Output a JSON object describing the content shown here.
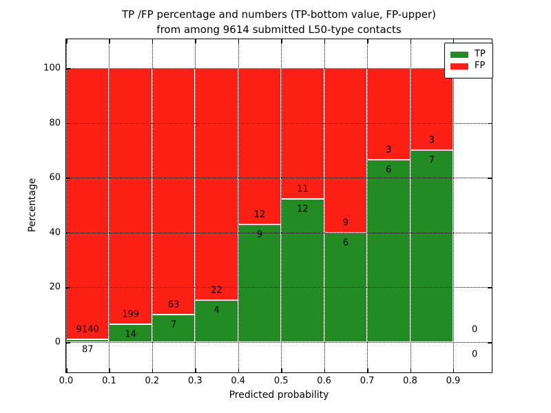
{
  "chart_data": {
    "type": "bar",
    "stacked": true,
    "title": "TP /FP percentage and numbers (TP-bottom value, FP-upper) from among 9614 submitted L50-type contacts",
    "title_lines": [
      "TP /FP percentage and numbers (TP-bottom value, FP-upper)",
      "from among 9614 submitted L50-type contacts"
    ],
    "xlabel": "Predicted probability",
    "ylabel": "Percentage",
    "total_contacts": 9614,
    "x_tick_labels": [
      "0.0",
      "0.1",
      "0.2",
      "0.3",
      "0.4",
      "0.5",
      "0.6",
      "0.7",
      "0.8",
      "0.9"
    ],
    "y_tick_values": [
      0,
      20,
      40,
      60,
      80,
      100
    ],
    "ylim": [
      -10.8,
      110.6
    ],
    "xlim": [
      0.0,
      0.99
    ],
    "grid": "dotted",
    "bar_bin_width": 0.1,
    "bins": [
      {
        "range": "0.0-0.1",
        "tp": 87,
        "fp": 9140,
        "tp_pct": 0.94
      },
      {
        "range": "0.1-0.2",
        "tp": 14,
        "fp": 199,
        "tp_pct": 6.57
      },
      {
        "range": "0.2-0.3",
        "tp": 7,
        "fp": 63,
        "tp_pct": 10.0
      },
      {
        "range": "0.3-0.4",
        "tp": 4,
        "fp": 22,
        "tp_pct": 15.38
      },
      {
        "range": "0.4-0.5",
        "tp": 9,
        "fp": 12,
        "tp_pct": 42.86
      },
      {
        "range": "0.5-0.6",
        "tp": 12,
        "fp": 11,
        "tp_pct": 52.17
      },
      {
        "range": "0.6-0.7",
        "tp": 6,
        "fp": 9,
        "tp_pct": 40.0
      },
      {
        "range": "0.7-0.8",
        "tp": 6,
        "fp": 3,
        "tp_pct": 66.67
      },
      {
        "range": "0.8-0.9",
        "tp": 7,
        "fp": 3,
        "tp_pct": 70.0
      },
      {
        "range": "0.9-1.0",
        "tp": 0,
        "fp": 0,
        "tp_pct": null
      }
    ],
    "legend": {
      "position": "upper right",
      "entries": [
        {
          "label": "TP",
          "color": "#228b22"
        },
        {
          "label": "FP",
          "color": "#fc1f15"
        }
      ]
    },
    "colors": {
      "tp": "#228b22",
      "fp": "#fc1f15",
      "grid": "#000000",
      "background": "#ffffff",
      "bar_edge": "#ffffff"
    }
  }
}
